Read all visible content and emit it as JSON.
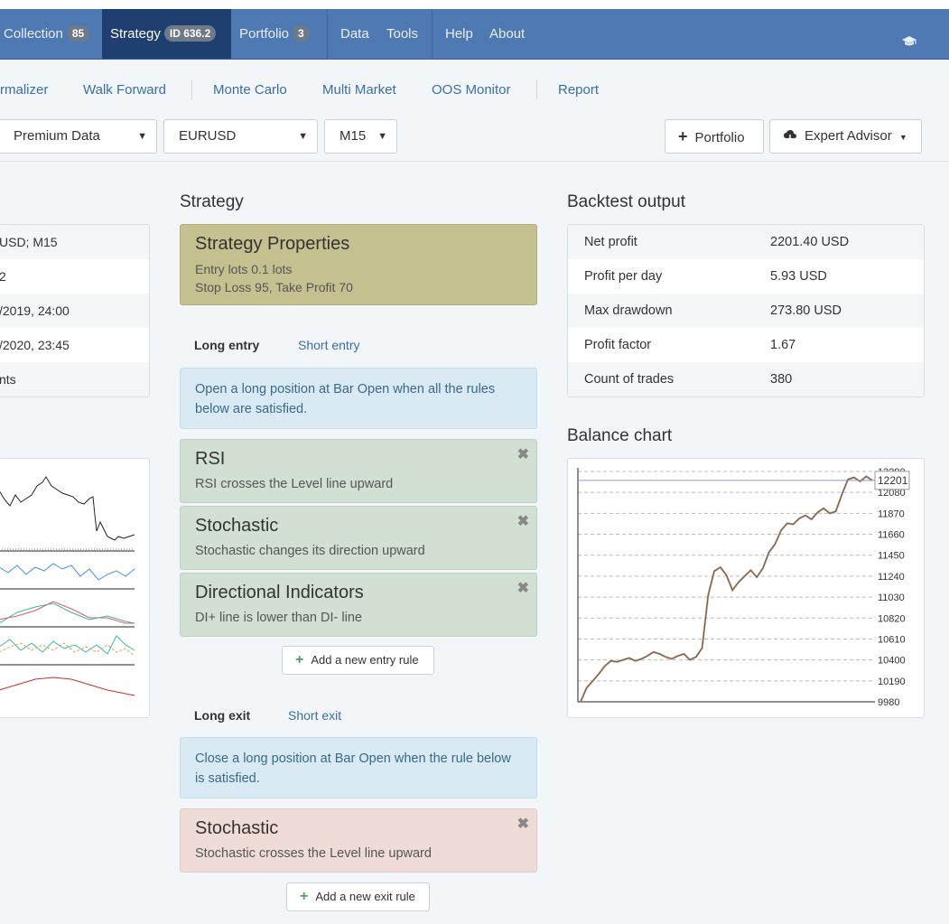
{
  "nav": {
    "items": [
      {
        "label": "Collection",
        "badge": "85"
      },
      {
        "label": "Strategy",
        "badge": "ID 636.2"
      },
      {
        "label": "Portfolio",
        "badge": "3"
      },
      {
        "label": "Data"
      },
      {
        "label": "Tools"
      },
      {
        "label": "Help"
      },
      {
        "label": "About"
      }
    ],
    "icon": "graduation-cap-icon"
  },
  "subnav": {
    "items": [
      "rmalizer",
      "Walk Forward",
      "Monte Carlo",
      "Multi Market",
      "OOS Monitor",
      "Report"
    ]
  },
  "toolbar": {
    "data_source": "Premium Data",
    "symbol": "EURUSD",
    "period": "M15",
    "portfolio_label": "Portfolio",
    "expert_advisor_label": "Expert Advisor"
  },
  "left_info": {
    "rows": [
      "USD; M15",
      "2",
      "/2019, 24:00",
      "/2020, 23:45",
      "nts"
    ]
  },
  "strategy": {
    "heading": "Strategy",
    "properties": {
      "title": "Strategy Properties",
      "line1": "Entry lots 0.1 lots",
      "line2": "Stop Loss 95, Take Profit 70"
    },
    "entry_tabs": {
      "active": "Long entry",
      "other": "Short entry"
    },
    "entry_info": "Open a long position at Bar Open when all the rules below are satisfied.",
    "entry_rules": [
      {
        "title": "RSI",
        "desc": "RSI crosses the Level line upward"
      },
      {
        "title": "Stochastic",
        "desc": "Stochastic changes its direction upward"
      },
      {
        "title": "Directional Indicators",
        "desc": "DI+ line is lower than DI- line"
      }
    ],
    "add_entry_label": "Add a new entry rule",
    "exit_tabs": {
      "active": "Long exit",
      "other": "Short exit"
    },
    "exit_info": "Close a long position at Bar Open when the rule below is satisfied.",
    "exit_rules": [
      {
        "title": "Stochastic",
        "desc": "Stochastic crosses the Level line upward"
      }
    ],
    "add_exit_label": "Add a new exit rule",
    "remove_icon": "close-icon"
  },
  "backtest": {
    "heading": "Backtest output",
    "rows": [
      {
        "key": "Net profit",
        "value": "2201.40 USD"
      },
      {
        "key": "Profit per day",
        "value": "5.93 USD"
      },
      {
        "key": "Max drawdown",
        "value": "273.80 USD"
      },
      {
        "key": "Profit factor",
        "value": "1.67"
      },
      {
        "key": "Count of trades",
        "value": "380"
      }
    ]
  },
  "balance": {
    "heading": "Balance chart",
    "current_label": "12201"
  },
  "chart_data": {
    "type": "line",
    "title": "Balance chart",
    "y_ticks": [
      12080,
      11870,
      11660,
      11450,
      11240,
      11030,
      10820,
      10610,
      10400,
      10190,
      9980
    ],
    "y_tick_top_partial": "12290",
    "ylim": [
      9980,
      12290
    ],
    "current_value": 12201,
    "series": [
      {
        "values": [
          9980,
          10120,
          10190,
          10260,
          10340,
          10390,
          10380,
          10400,
          10420,
          10390,
          10410,
          10440,
          10480,
          10460,
          10430,
          10410,
          10440,
          10460,
          10400,
          10430,
          10520,
          11050,
          11290,
          11330,
          11250,
          11100,
          11180,
          11240,
          11300,
          11230,
          11320,
          11480,
          11560,
          11700,
          11770,
          11760,
          11820,
          11850,
          11810,
          11880,
          11920,
          11870,
          11890,
          12060,
          12210,
          12230,
          12190,
          12240,
          12201
        ]
      }
    ],
    "grid": true
  }
}
